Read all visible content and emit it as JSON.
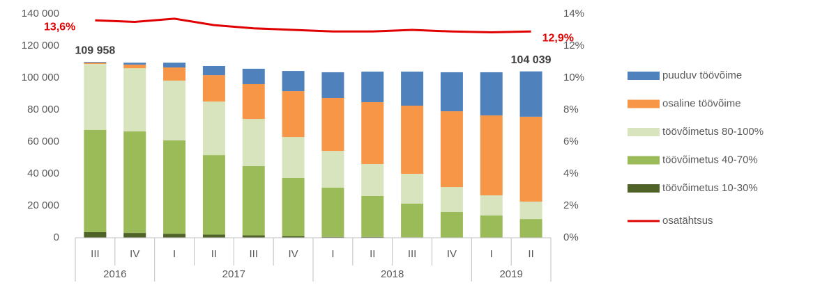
{
  "chart_data": {
    "type": "bar",
    "stacked": true,
    "categories": [
      "III",
      "IV",
      "I",
      "II",
      "III",
      "IV",
      "I",
      "II",
      "III",
      "IV",
      "I",
      "II"
    ],
    "category_groups": [
      "2016",
      "2016",
      "2017",
      "2017",
      "2017",
      "2017",
      "2018",
      "2018",
      "2018",
      "2018",
      "2019",
      "2019"
    ],
    "series": [
      {
        "name": "töövõimetus 10-30%",
        "color": "#4f6228",
        "values": [
          3500,
          3000,
          2500,
          2000,
          1500,
          1000,
          500,
          500,
          300,
          200,
          200,
          200
        ]
      },
      {
        "name": "töövõimetus 40-70%",
        "color": "#9bbb59",
        "values": [
          64000,
          63500,
          58400,
          49700,
          43300,
          36400,
          30800,
          25600,
          21000,
          15900,
          13700,
          11500
        ]
      },
      {
        "name": "töövõimetus 80-100%",
        "color": "#d7e4bd",
        "values": [
          41200,
          39500,
          37400,
          33500,
          29500,
          25600,
          23000,
          20000,
          18700,
          15600,
          12600,
          10900
        ]
      },
      {
        "name": "osaline töövõime",
        "color": "#f79646",
        "values": [
          800,
          2300,
          8200,
          16500,
          21800,
          28700,
          33100,
          38700,
          42600,
          47400,
          50000,
          53100
        ]
      },
      {
        "name": "puuduv töövõime",
        "color": "#4f81bd",
        "values": [
          458,
          1200,
          3000,
          5700,
          9600,
          12600,
          16100,
          19100,
          21300,
          24400,
          27000,
          28339
        ]
      },
      {
        "name": "osatähtsus",
        "color": "#e00000",
        "type": "line",
        "axis": "y2",
        "values": [
          13.6,
          13.5,
          13.7,
          13.3,
          13.1,
          13.0,
          12.9,
          12.9,
          13.0,
          12.9,
          12.85,
          12.9
        ],
        "value_labels": [
          "13,6%",
          null,
          null,
          null,
          null,
          null,
          null,
          null,
          null,
          null,
          null,
          "12,9%"
        ]
      }
    ],
    "total_labels": [
      "109 958",
      null,
      null,
      null,
      null,
      null,
      null,
      null,
      null,
      null,
      null,
      "104 039"
    ],
    "ylim": [
      0,
      140000
    ],
    "yticks": [
      0,
      {
        "value": 20000,
        "label": "20 000"
      },
      {
        "value": 40000,
        "label": "40 000"
      },
      {
        "value": 60000,
        "label": "60 000"
      },
      {
        "value": 80000,
        "label": "80 000"
      },
      {
        "value": 100000,
        "label": "100 000"
      },
      {
        "value": 120000,
        "label": "120 000"
      },
      {
        "value": 140000,
        "label": "140 000"
      }
    ],
    "y2lim": [
      0,
      14
    ],
    "y2ticks": [
      {
        "value": 0,
        "label": "0%"
      },
      {
        "value": 2,
        "label": "2%"
      },
      {
        "value": 4,
        "label": "4%"
      },
      {
        "value": 6,
        "label": "6%"
      },
      {
        "value": 8,
        "label": "8%"
      },
      {
        "value": 10,
        "label": "10%"
      },
      {
        "value": 12,
        "label": "12%"
      },
      {
        "value": 14,
        "label": "14%"
      }
    ],
    "legend": "right"
  }
}
